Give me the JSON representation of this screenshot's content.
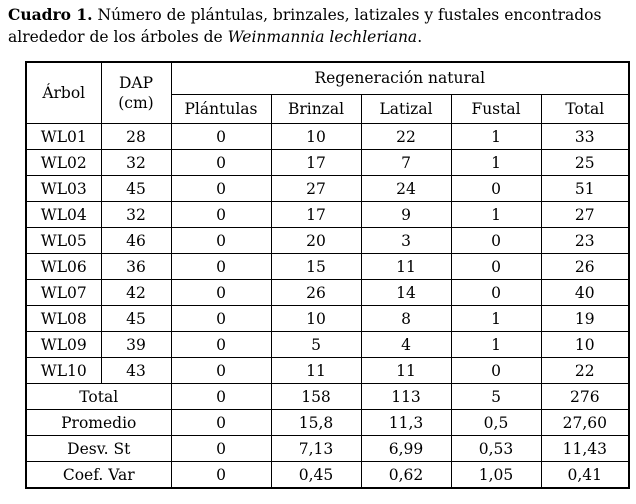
{
  "caption": {
    "lead": "Cuadro 1.",
    "text": " Número de plántulas, brinzales, latizales y fustales encontrados alrededor de los árboles de ",
    "species": "Weinmannia lechleriana",
    "end": "."
  },
  "headers": {
    "arbol": "Árbol",
    "dap": "DAP",
    "dap_unit": "(cm)",
    "group": "Regeneración natural",
    "cols": [
      "Plántulas",
      "Brinzal",
      "Latizal",
      "Fustal",
      "Total"
    ]
  },
  "rows": [
    {
      "arbol": "WL01",
      "dap": "28",
      "plantulas": "0",
      "brinzal": "10",
      "latizal": "22",
      "fustal": "1",
      "total": "33"
    },
    {
      "arbol": "WL02",
      "dap": "32",
      "plantulas": "0",
      "brinzal": "17",
      "latizal": "7",
      "fustal": "1",
      "total": "25"
    },
    {
      "arbol": "WL03",
      "dap": "45",
      "plantulas": "0",
      "brinzal": "27",
      "latizal": "24",
      "fustal": "0",
      "total": "51"
    },
    {
      "arbol": "WL04",
      "dap": "32",
      "plantulas": "0",
      "brinzal": "17",
      "latizal": "9",
      "fustal": "1",
      "total": "27"
    },
    {
      "arbol": "WL05",
      "dap": "46",
      "plantulas": "0",
      "brinzal": "20",
      "latizal": "3",
      "fustal": "0",
      "total": "23"
    },
    {
      "arbol": "WL06",
      "dap": "36",
      "plantulas": "0",
      "brinzal": "15",
      "latizal": "11",
      "fustal": "0",
      "total": "26"
    },
    {
      "arbol": "WL07",
      "dap": "42",
      "plantulas": "0",
      "brinzal": "26",
      "latizal": "14",
      "fustal": "0",
      "total": "40"
    },
    {
      "arbol": "WL08",
      "dap": "45",
      "plantulas": "0",
      "brinzal": "10",
      "latizal": "8",
      "fustal": "1",
      "total": "19"
    },
    {
      "arbol": "WL09",
      "dap": "39",
      "plantulas": "0",
      "brinzal": "5",
      "latizal": "4",
      "fustal": "1",
      "total": "10"
    },
    {
      "arbol": "WL10",
      "dap": "43",
      "plantulas": "0",
      "brinzal": "11",
      "latizal": "11",
      "fustal": "0",
      "total": "22"
    }
  ],
  "summary": [
    {
      "label": "Total",
      "plantulas": "0",
      "brinzal": "158",
      "latizal": "113",
      "fustal": "5",
      "total": "276"
    },
    {
      "label": "Promedio",
      "plantulas": "0",
      "brinzal": "15,8",
      "latizal": "11,3",
      "fustal": "0,5",
      "total": "27,60"
    },
    {
      "label": "Desv. St",
      "plantulas": "0",
      "brinzal": "7,13",
      "latizal": "6,99",
      "fustal": "0,53",
      "total": "11,43"
    },
    {
      "label": "Coef. Var",
      "plantulas": "0",
      "brinzal": "0,45",
      "latizal": "0,62",
      "fustal": "1,05",
      "total": "0,41"
    }
  ]
}
